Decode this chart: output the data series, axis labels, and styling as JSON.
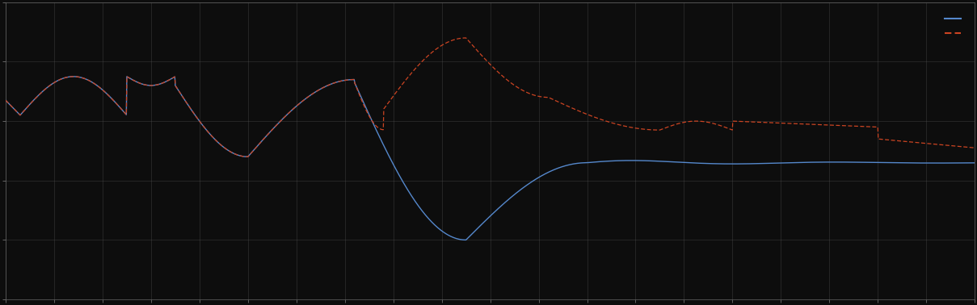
{
  "background_color": "#0d0d0d",
  "plot_bg_color": "#0d0d0d",
  "grid_color": "#555555",
  "line1_color": "#5588cc",
  "line2_color": "#cc4422",
  "xlim": [
    0,
    20
  ],
  "ylim": [
    0,
    5
  ],
  "x_ticks": [
    0,
    1,
    2,
    3,
    4,
    5,
    6,
    7,
    8,
    9,
    10,
    11,
    12,
    13,
    14,
    15,
    16,
    17,
    18,
    19,
    20
  ],
  "y_ticks": [
    0,
    1,
    2,
    3,
    4,
    5
  ],
  "figsize": [
    12.09,
    3.78
  ],
  "dpi": 100,
  "spine_color": "#666666",
  "tick_color": "#888888"
}
